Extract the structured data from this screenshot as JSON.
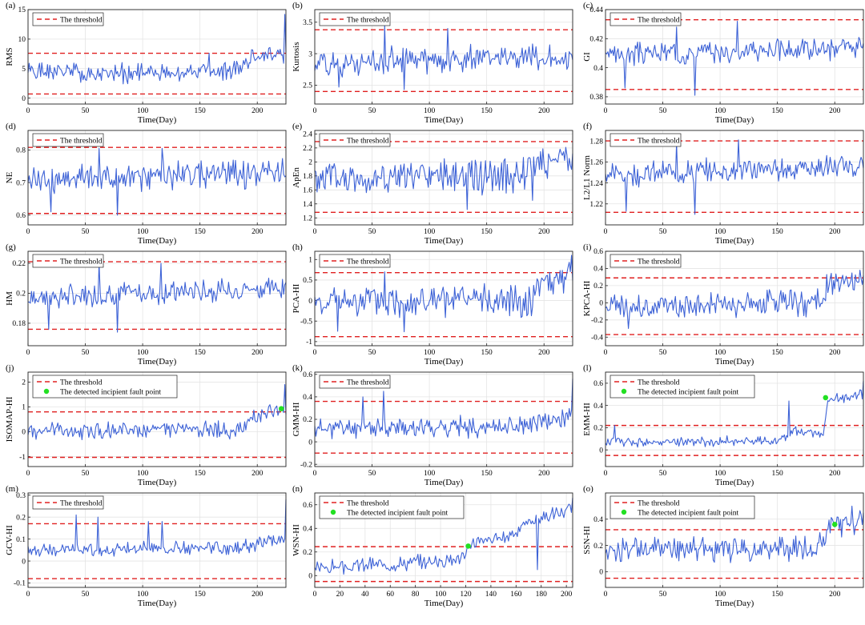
{
  "colors": {
    "series": "#3d62d6",
    "threshold": "#e02020",
    "fault": "#22e022"
  },
  "legend_threshold": "The threshold",
  "legend_fault": "The detected incipient fault point",
  "chart_data": [
    {
      "type": "line",
      "label": "(a)",
      "xlabel": "Time(Day)",
      "ylabel": "RMS",
      "xlim": [
        0,
        225
      ],
      "xticks": [
        0,
        50,
        100,
        150,
        200
      ],
      "ylim": [
        -1,
        15
      ],
      "yticks": [
        0,
        5,
        10,
        15
      ],
      "thresholds": [
        7.6,
        0.7
      ],
      "fault_point": null,
      "n": 225,
      "base": [
        [
          0,
          4.5
        ],
        [
          60,
          4.2
        ],
        [
          120,
          4.2
        ],
        [
          180,
          4.8
        ],
        [
          195,
          7.0
        ],
        [
          220,
          7.2
        ]
      ],
      "amp": 1.3,
      "seed": 1,
      "spikes": [
        [
          158,
          7.6
        ],
        [
          195,
          8.2
        ],
        [
          224,
          14.2
        ]
      ]
    },
    {
      "type": "line",
      "label": "(b)",
      "xlabel": "Time(Day)",
      "ylabel": "Kurtosis",
      "xlim": [
        0,
        225
      ],
      "xticks": [
        0,
        50,
        100,
        150,
        200
      ],
      "ylim": [
        2.2,
        3.7
      ],
      "yticks": [
        2.5,
        3,
        3.5
      ],
      "thresholds": [
        3.38,
        2.4
      ],
      "fault_point": null,
      "n": 225,
      "base": [
        [
          0,
          2.85
        ],
        [
          225,
          2.95
        ]
      ],
      "amp": 0.17,
      "seed": 2,
      "spikes": [
        [
          21,
          2.47
        ],
        [
          61,
          3.45
        ],
        [
          78,
          2.43
        ],
        [
          116,
          3.4
        ]
      ]
    },
    {
      "type": "line",
      "label": "(c)",
      "xlabel": "Time(Day)",
      "ylabel": "GI",
      "xlim": [
        0,
        225
      ],
      "xticks": [
        0,
        50,
        100,
        150,
        200
      ],
      "ylim": [
        0.375,
        0.44
      ],
      "yticks": [
        0.38,
        0.4,
        0.42,
        0.44
      ],
      "thresholds": [
        0.433,
        0.385
      ],
      "fault_point": null,
      "n": 225,
      "base": [
        [
          0,
          0.409
        ],
        [
          225,
          0.414
        ]
      ],
      "amp": 0.006,
      "seed": 3,
      "spikes": [
        [
          17,
          0.386
        ],
        [
          62,
          0.428
        ],
        [
          78,
          0.381
        ],
        [
          115,
          0.432
        ]
      ]
    },
    {
      "type": "line",
      "label": "(d)",
      "xlabel": "Time(Day)",
      "ylabel": "NE",
      "xlim": [
        0,
        225
      ],
      "xticks": [
        0,
        50,
        100,
        150,
        200
      ],
      "ylim": [
        0.57,
        0.86
      ],
      "yticks": [
        0.6,
        0.7,
        0.8
      ],
      "thresholds": [
        0.808,
        0.605
      ],
      "fault_point": null,
      "n": 225,
      "base": [
        [
          0,
          0.71
        ],
        [
          225,
          0.73
        ]
      ],
      "amp": 0.035,
      "seed": 4,
      "spikes": [
        [
          20,
          0.61
        ],
        [
          62,
          0.805
        ],
        [
          78,
          0.6
        ],
        [
          117,
          0.805
        ]
      ]
    },
    {
      "type": "line",
      "label": "(e)",
      "xlabel": "Time(Day)",
      "ylabel": "ApEn",
      "xlim": [
        0,
        225
      ],
      "xticks": [
        0,
        50,
        100,
        150,
        200
      ],
      "ylim": [
        1.1,
        2.45
      ],
      "yticks": [
        1.2,
        1.4,
        1.6,
        1.8,
        2,
        2.2,
        2.4
      ],
      "thresholds": [
        2.29,
        1.28
      ],
      "fault_point": null,
      "n": 225,
      "base": [
        [
          0,
          1.75
        ],
        [
          185,
          1.8
        ],
        [
          195,
          2.05
        ],
        [
          225,
          2.02
        ]
      ],
      "amp": 0.2,
      "seed": 5,
      "spikes": [
        [
          133,
          1.32
        ],
        [
          190,
          1.45
        ]
      ]
    },
    {
      "type": "line",
      "label": "(f)",
      "xlabel": "Time(Day)",
      "ylabel": "L2/L1 Norm",
      "xlim": [
        0,
        225
      ],
      "xticks": [
        0,
        50,
        100,
        150,
        200
      ],
      "ylim": [
        1.2,
        1.29
      ],
      "yticks": [
        1.22,
        1.24,
        1.26,
        1.28
      ],
      "thresholds": [
        1.28,
        1.212
      ],
      "fault_point": null,
      "n": 225,
      "base": [
        [
          0,
          1.248
        ],
        [
          225,
          1.256
        ]
      ],
      "amp": 0.009,
      "seed": 6,
      "spikes": [
        [
          18,
          1.213
        ],
        [
          62,
          1.278
        ],
        [
          78,
          1.21
        ],
        [
          116,
          1.281
        ]
      ]
    },
    {
      "type": "line",
      "label": "(g)",
      "xlabel": "Time(Day)",
      "ylabel": "HM",
      "xlim": [
        0,
        225
      ],
      "xticks": [
        0,
        50,
        100,
        150,
        200
      ],
      "ylim": [
        0.165,
        0.228
      ],
      "yticks": [
        0.18,
        0.2,
        0.22
      ],
      "thresholds": [
        0.221,
        0.176
      ],
      "fault_point": null,
      "n": 225,
      "base": [
        [
          0,
          0.197
        ],
        [
          225,
          0.204
        ]
      ],
      "amp": 0.006,
      "seed": 7,
      "spikes": [
        [
          18,
          0.176
        ],
        [
          62,
          0.22
        ],
        [
          78,
          0.174
        ],
        [
          116,
          0.22
        ]
      ]
    },
    {
      "type": "line",
      "label": "(h)",
      "xlabel": "Time(Day)",
      "ylabel": "PCA-HI",
      "xlim": [
        0,
        225
      ],
      "xticks": [
        0,
        50,
        100,
        150,
        200
      ],
      "ylim": [
        -1.1,
        1.2
      ],
      "yticks": [
        -1,
        -0.5,
        0,
        0.5,
        1
      ],
      "thresholds": [
        0.68,
        -0.88
      ],
      "fault_point": null,
      "n": 225,
      "base": [
        [
          0,
          -0.05
        ],
        [
          190,
          0.0
        ],
        [
          195,
          0.5
        ],
        [
          225,
          0.55
        ]
      ],
      "amp": 0.3,
      "seed": 8,
      "spikes": [
        [
          20,
          -0.75
        ],
        [
          61,
          0.7
        ],
        [
          78,
          -0.76
        ],
        [
          224,
          1.1
        ]
      ]
    },
    {
      "type": "line",
      "label": "(i)",
      "xlabel": "Time(Day)",
      "ylabel": "KPCA-HI",
      "xlim": [
        0,
        225
      ],
      "xticks": [
        0,
        50,
        100,
        150,
        200
      ],
      "ylim": [
        -0.5,
        0.6
      ],
      "yticks": [
        -0.4,
        -0.2,
        0,
        0.2,
        0.4,
        0.6
      ],
      "thresholds": [
        0.29,
        -0.37
      ],
      "fault_point": null,
      "n": 225,
      "base": [
        [
          0,
          -0.05
        ],
        [
          190,
          0.0
        ],
        [
          195,
          0.22
        ],
        [
          225,
          0.25
        ]
      ],
      "amp": 0.12,
      "seed": 9,
      "spikes": [
        [
          20,
          -0.3
        ],
        [
          193,
          0.33
        ],
        [
          222,
          0.38
        ]
      ]
    },
    {
      "type": "line",
      "label": "(j)",
      "xlabel": "Time(Day)",
      "ylabel": "ISOMAP-HI",
      "xlim": [
        0,
        225
      ],
      "xticks": [
        0,
        50,
        100,
        150,
        200
      ],
      "ylim": [
        -1.4,
        2.4
      ],
      "yticks": [
        -1,
        0,
        1,
        2
      ],
      "thresholds": [
        0.8,
        -1.03
      ],
      "fault_point": [
        221,
        0.93
      ],
      "n": 225,
      "base": [
        [
          0,
          0.05
        ],
        [
          190,
          0.1
        ],
        [
          195,
          0.65
        ],
        [
          225,
          0.75
        ]
      ],
      "amp": 0.28,
      "seed": 10,
      "spikes": [
        [
          224,
          1.9
        ]
      ]
    },
    {
      "type": "line",
      "label": "(k)",
      "xlabel": "Time(Day)",
      "ylabel": "GMM-HI",
      "xlim": [
        0,
        225
      ],
      "xticks": [
        0,
        50,
        100,
        150,
        200
      ],
      "ylim": [
        -0.22,
        0.62
      ],
      "yticks": [
        -0.2,
        0,
        0.2,
        0.4,
        0.6
      ],
      "thresholds": [
        0.36,
        -0.1
      ],
      "fault_point": null,
      "n": 225,
      "base": [
        [
          0,
          0.12
        ],
        [
          190,
          0.14
        ],
        [
          225,
          0.24
        ]
      ],
      "amp": 0.07,
      "seed": 11,
      "spikes": [
        [
          42,
          0.4
        ],
        [
          60,
          0.45
        ],
        [
          225,
          0.56
        ]
      ]
    },
    {
      "type": "line",
      "label": "(l)",
      "xlabel": "Time(Day)",
      "ylabel": "EMM-HI",
      "xlim": [
        0,
        225
      ],
      "xticks": [
        0,
        50,
        100,
        150,
        200
      ],
      "ylim": [
        -0.15,
        0.7
      ],
      "yticks": [
        0,
        0.2,
        0.4,
        0.6
      ],
      "thresholds": [
        0.22,
        -0.05
      ],
      "fault_point": [
        192,
        0.47
      ],
      "n": 225,
      "base": [
        [
          0,
          0.07
        ],
        [
          150,
          0.08
        ],
        [
          165,
          0.18
        ],
        [
          190,
          0.12
        ],
        [
          194,
          0.45
        ],
        [
          225,
          0.5
        ]
      ],
      "amp": 0.035,
      "seed": 12,
      "spikes": [
        [
          8,
          0.22
        ],
        [
          160,
          0.44
        ],
        [
          225,
          0.62
        ]
      ]
    },
    {
      "type": "line",
      "label": "(m)",
      "xlabel": "Time(Day)",
      "ylabel": "GCV-HI",
      "xlim": [
        0,
        225
      ],
      "xticks": [
        0,
        50,
        100,
        150,
        200
      ],
      "ylim": [
        -0.12,
        0.31
      ],
      "yticks": [
        -0.1,
        0,
        0.1,
        0.2,
        0.3
      ],
      "thresholds": [
        0.17,
        -0.08
      ],
      "fault_point": null,
      "n": 225,
      "base": [
        [
          0,
          0.05
        ],
        [
          180,
          0.06
        ],
        [
          225,
          0.1
        ]
      ],
      "amp": 0.025,
      "seed": 13,
      "spikes": [
        [
          42,
          0.21
        ],
        [
          61,
          0.2
        ],
        [
          105,
          0.18
        ],
        [
          117,
          0.18
        ],
        [
          225,
          0.28
        ]
      ]
    },
    {
      "type": "line",
      "label": "(n)",
      "xlabel": "Time(Day)",
      "ylabel": "WSN-HI",
      "xlim": [
        0,
        205
      ],
      "xticks": [
        0,
        20,
        40,
        60,
        80,
        100,
        120,
        140,
        160,
        180,
        200
      ],
      "ylim": [
        -0.1,
        0.7
      ],
      "yticks": [
        0,
        0.2,
        0.4,
        0.6
      ],
      "thresholds": [
        0.245,
        -0.05
      ],
      "fault_point": [
        122,
        0.25
      ],
      "n": 205,
      "base": [
        [
          0,
          0.06
        ],
        [
          100,
          0.12
        ],
        [
          120,
          0.16
        ],
        [
          124,
          0.28
        ],
        [
          150,
          0.32
        ],
        [
          175,
          0.48
        ],
        [
          205,
          0.56
        ]
      ],
      "amp": 0.05,
      "seed": 14,
      "spikes": [
        [
          177,
          0.05
        ],
        [
          205,
          0.66
        ]
      ]
    },
    {
      "type": "line",
      "label": "(o)",
      "xlabel": "Time(Day)",
      "ylabel": "SSN-HI",
      "xlim": [
        0,
        225
      ],
      "xticks": [
        0,
        50,
        100,
        150,
        200
      ],
      "ylim": [
        -0.12,
        0.6
      ],
      "yticks": [
        0,
        0.2,
        0.4
      ],
      "thresholds": [
        0.32,
        -0.05
      ],
      "fault_point": [
        200,
        0.36
      ],
      "n": 225,
      "base": [
        [
          0,
          0.17
        ],
        [
          185,
          0.18
        ],
        [
          195,
          0.33
        ],
        [
          225,
          0.4
        ]
      ],
      "amp": 0.075,
      "seed": 15,
      "spikes": [
        [
          215,
          0.5
        ]
      ]
    }
  ]
}
